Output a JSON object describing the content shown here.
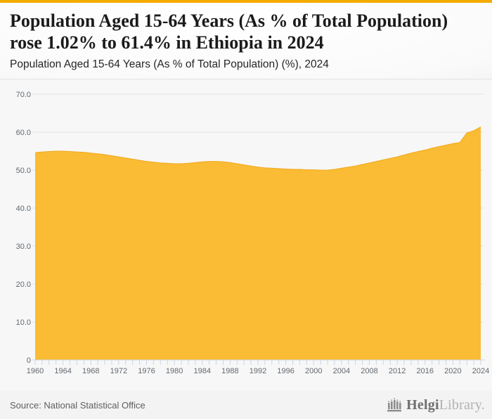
{
  "header": {
    "title": "Population Aged 15-64 Years (As % of Total Population) rose 1.02% to 61.4% in Ethiopia in 2024",
    "subtitle": "Population Aged 15-64 Years (As % of Total Population) (%), 2024"
  },
  "footer": {
    "source": "Source: National Statistical Office",
    "logo": {
      "icon": "helgi-library-building-icon",
      "name_primary": "Helgi",
      "name_secondary": "Library."
    }
  },
  "colors": {
    "accent_bar": "#F5AB00",
    "area_fill": "#F9BC34",
    "area_stroke": "#F2A81C",
    "grid_line": "#e2e2e2",
    "axis_line": "#ccd4e3",
    "tick_label": "#62686F",
    "title_text": "#1b1b1b",
    "chart_bg": "#f7f7f7"
  },
  "chart_data": {
    "type": "area",
    "title": "Population Aged 15-64 Years (As % of Total Population) (%), 2024",
    "country": "Ethiopia",
    "unit": "%",
    "grid": "horizontal",
    "legend": "none",
    "ylim": [
      0,
      70
    ],
    "yticks": [
      {
        "v": 0,
        "label": "0"
      },
      {
        "v": 10,
        "label": "10.0"
      },
      {
        "v": 20,
        "label": "20.0"
      },
      {
        "v": 30,
        "label": "30.0"
      },
      {
        "v": 40,
        "label": "40.0"
      },
      {
        "v": 50,
        "label": "50.0"
      },
      {
        "v": 60,
        "label": "60.0"
      },
      {
        "v": 70,
        "label": "70.0"
      }
    ],
    "xticks": [
      1960,
      1964,
      1968,
      1972,
      1976,
      1980,
      1984,
      1988,
      1992,
      1996,
      2000,
      2004,
      2008,
      2012,
      2016,
      2020,
      2024
    ],
    "x": [
      1960,
      1961,
      1962,
      1963,
      1964,
      1965,
      1966,
      1967,
      1968,
      1969,
      1970,
      1971,
      1972,
      1973,
      1974,
      1975,
      1976,
      1977,
      1978,
      1979,
      1980,
      1981,
      1982,
      1983,
      1984,
      1985,
      1986,
      1987,
      1988,
      1989,
      1990,
      1991,
      1992,
      1993,
      1994,
      1995,
      1996,
      1997,
      1998,
      1999,
      2000,
      2001,
      2002,
      2003,
      2004,
      2005,
      2006,
      2007,
      2008,
      2009,
      2010,
      2011,
      2012,
      2013,
      2014,
      2015,
      2016,
      2017,
      2018,
      2019,
      2020,
      2021,
      2022,
      2023,
      2024
    ],
    "values": [
      54.6,
      54.8,
      54.9,
      55.0,
      55.0,
      54.9,
      54.8,
      54.7,
      54.5,
      54.3,
      54.1,
      53.8,
      53.5,
      53.2,
      52.9,
      52.6,
      52.3,
      52.1,
      51.9,
      51.8,
      51.7,
      51.7,
      51.8,
      52.0,
      52.2,
      52.3,
      52.3,
      52.2,
      52.0,
      51.7,
      51.4,
      51.1,
      50.8,
      50.6,
      50.5,
      50.4,
      50.3,
      50.2,
      50.2,
      50.1,
      50.1,
      50.0,
      50.0,
      50.2,
      50.5,
      50.8,
      51.1,
      51.5,
      51.9,
      52.3,
      52.7,
      53.1,
      53.5,
      54.0,
      54.5,
      54.9,
      55.3,
      55.8,
      56.2,
      56.6,
      57.0,
      57.3,
      59.8,
      60.4,
      61.4
    ],
    "last_value": 61.4,
    "change": "1.02%"
  }
}
